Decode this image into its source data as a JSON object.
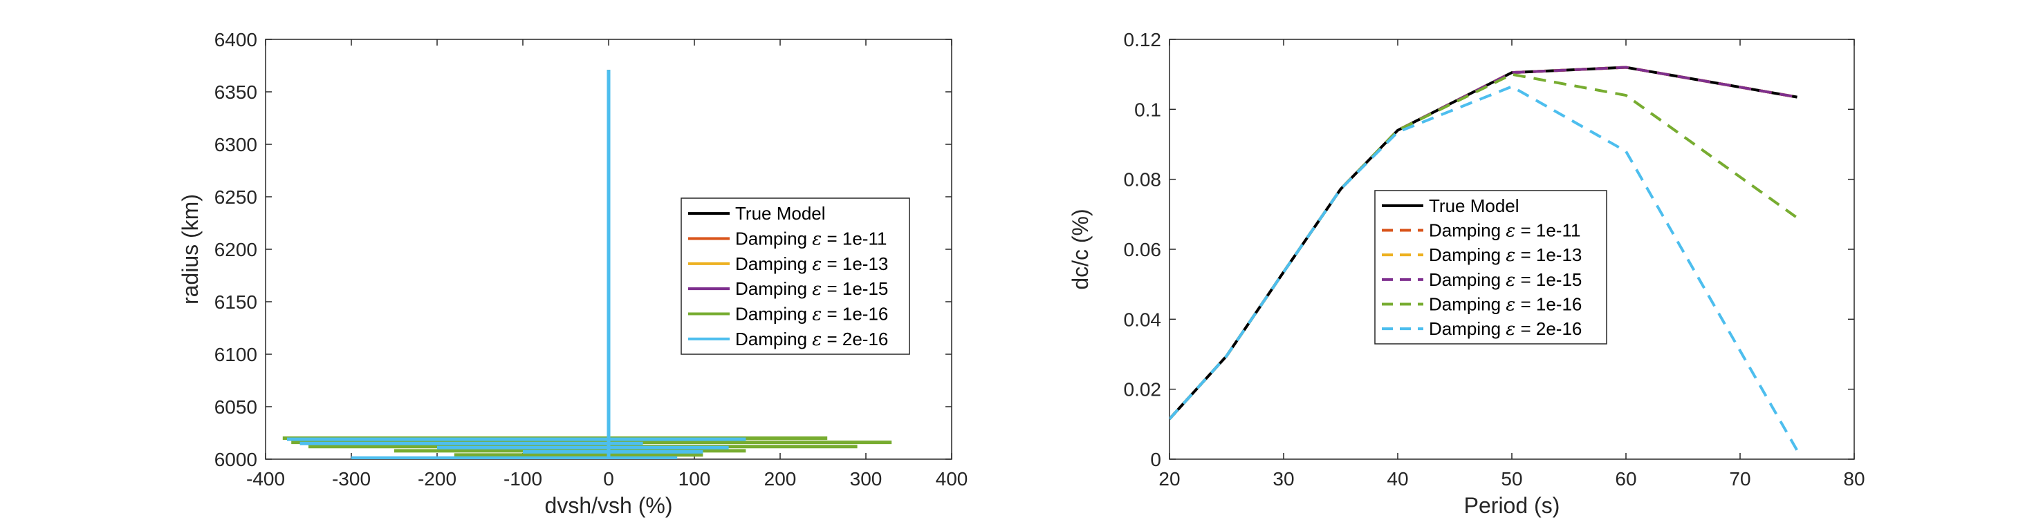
{
  "chart_data": [
    {
      "type": "line",
      "xlabel": "dvsh/vsh (%)",
      "ylabel": "radius (km)",
      "xlim": [
        -400,
        400
      ],
      "ylim": [
        6000,
        6400
      ],
      "xticks": [
        -400,
        -300,
        -200,
        -100,
        0,
        100,
        200,
        300,
        400
      ],
      "xtick_labels": [
        "-400",
        "-300",
        "-200",
        "-100",
        "0",
        "100",
        "200",
        "300",
        "400"
      ],
      "yticks": [
        6000,
        6050,
        6100,
        6150,
        6200,
        6250,
        6300,
        6350,
        6400
      ],
      "ytick_labels": [
        "6000",
        "6050",
        "6100",
        "6150",
        "6200",
        "6250",
        "6300",
        "6350",
        "6400"
      ],
      "grid": false,
      "legend_position": "right",
      "series": [
        {
          "name": "True Model",
          "color": "#000000",
          "dash": "solid",
          "segments": [
            [
              [
                0,
                6000
              ],
              [
                0,
                6371
              ]
            ]
          ]
        },
        {
          "name": "Damping ε = 1e-11",
          "color": "#d95319",
          "dash": "solid",
          "segments": [
            [
              [
                0,
                6000
              ],
              [
                0,
                6371
              ]
            ]
          ]
        },
        {
          "name": "Damping ε = 1e-13",
          "color": "#edb120",
          "dash": "solid",
          "segments": [
            [
              [
                0,
                6000
              ],
              [
                0,
                6371
              ]
            ]
          ]
        },
        {
          "name": "Damping ε = 1e-15",
          "color": "#7e2f8e",
          "dash": "solid",
          "segments": [
            [
              [
                0,
                6000
              ],
              [
                0,
                6371
              ]
            ]
          ]
        },
        {
          "name": "Damping ε = 1e-16",
          "color": "#77ac30",
          "dash": "solid",
          "segments": [
            [
              [
                -380,
                6020
              ],
              [
                255,
                6020
              ]
            ],
            [
              [
                -370,
                6016
              ],
              [
                330,
                6016
              ]
            ],
            [
              [
                -350,
                6012
              ],
              [
                290,
                6012
              ]
            ],
            [
              [
                -250,
                6008
              ],
              [
                160,
                6008
              ]
            ],
            [
              [
                -180,
                6004
              ],
              [
                110,
                6004
              ]
            ],
            [
              [
                -270,
                6001
              ],
              [
                -230,
                6001
              ]
            ],
            [
              [
                -80,
                6001
              ],
              [
                60,
                6001
              ]
            ],
            [
              [
                0,
                6000
              ],
              [
                0,
                6371
              ]
            ]
          ]
        },
        {
          "name": "Damping ε = 2e-16",
          "color": "#4dbeee",
          "dash": "solid",
          "segments": [
            [
              [
                -375,
                6019
              ],
              [
                160,
                6019
              ]
            ],
            [
              [
                -360,
                6015
              ],
              [
                40,
                6015
              ]
            ],
            [
              [
                -200,
                6011
              ],
              [
                140,
                6011
              ]
            ],
            [
              [
                -100,
                6007
              ],
              [
                110,
                6007
              ]
            ],
            [
              [
                -300,
                6001
              ],
              [
                80,
                6001
              ]
            ],
            [
              [
                0,
                6000
              ],
              [
                0,
                6371
              ]
            ]
          ]
        }
      ]
    },
    {
      "type": "line",
      "xlabel": "Period (s)",
      "ylabel": "dc/c (%)",
      "xlim": [
        20,
        80
      ],
      "ylim": [
        0,
        0.12
      ],
      "xticks": [
        20,
        30,
        40,
        50,
        60,
        70,
        80
      ],
      "xtick_labels": [
        "20",
        "30",
        "40",
        "50",
        "60",
        "70",
        "80"
      ],
      "yticks": [
        0,
        0.02,
        0.04,
        0.06,
        0.08,
        0.1,
        0.12
      ],
      "ytick_labels": [
        "0",
        "0.02",
        "0.04",
        "0.06",
        "0.08",
        "0.1",
        "0.12"
      ],
      "grid": false,
      "legend_position": "center-left",
      "x": [
        20,
        25,
        30,
        35,
        40,
        50,
        60,
        75
      ],
      "series": [
        {
          "name": "True Model",
          "color": "#000000",
          "dash": "solid",
          "values": [
            0.0115,
            0.0295,
            0.0535,
            0.0772,
            0.094,
            0.1105,
            0.112,
            0.1035
          ]
        },
        {
          "name": "Damping ε = 1e-11",
          "color": "#d95319",
          "dash": "dashed",
          "values": [
            0.0115,
            0.0295,
            0.0535,
            0.0772,
            0.094,
            0.1105,
            0.112,
            0.1035
          ]
        },
        {
          "name": "Damping ε = 1e-13",
          "color": "#edb120",
          "dash": "dashed",
          "values": [
            0.0115,
            0.0295,
            0.0535,
            0.0772,
            0.094,
            0.1105,
            0.112,
            0.1035
          ]
        },
        {
          "name": "Damping ε = 1e-15",
          "color": "#7e2f8e",
          "dash": "dashed",
          "values": [
            0.0115,
            0.0295,
            0.0535,
            0.0772,
            0.094,
            0.1105,
            0.112,
            0.1035
          ]
        },
        {
          "name": "Damping ε = 1e-16",
          "color": "#77ac30",
          "dash": "dashed",
          "values": [
            0.0115,
            0.0295,
            0.0535,
            0.0772,
            0.094,
            0.11,
            0.104,
            0.069
          ]
        },
        {
          "name": "Damping ε = 2e-16",
          "color": "#4dbeee",
          "dash": "dashed",
          "values": [
            0.0115,
            0.0295,
            0.0535,
            0.0772,
            0.0935,
            0.1065,
            0.088,
            0.0025
          ]
        }
      ]
    }
  ]
}
